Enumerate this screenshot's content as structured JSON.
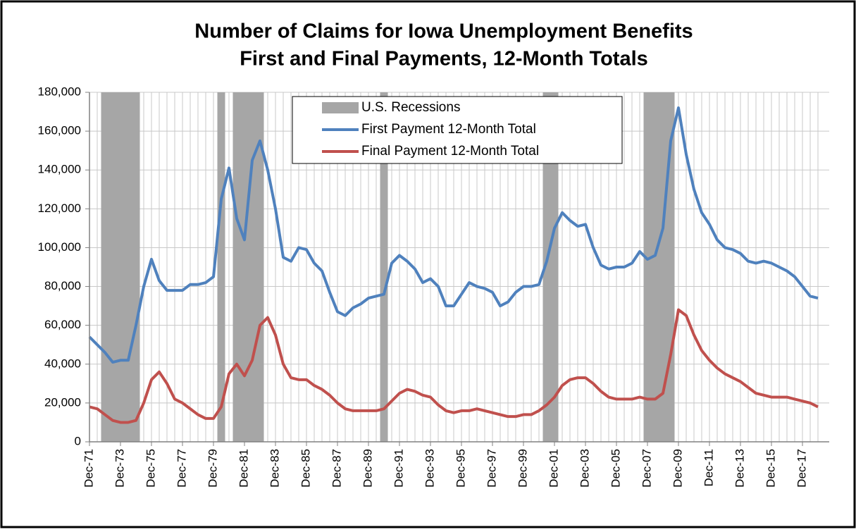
{
  "chart_data": {
    "type": "line",
    "title": "Number of Claims for Iowa Unemployment  Benefits",
    "subtitle": "First and Final Payments, 12-Month  Totals",
    "categories": [
      "Dec-71",
      null,
      null,
      null,
      "Dec-73",
      null,
      null,
      null,
      "Dec-75",
      null,
      null,
      null,
      "Dec-77",
      null,
      null,
      null,
      "Dec-79",
      null,
      null,
      null,
      "Dec-81",
      null,
      null,
      null,
      "Dec-83",
      null,
      null,
      null,
      "Dec-85",
      null,
      null,
      null,
      "Dec-87",
      null,
      null,
      null,
      "Dec-89",
      null,
      null,
      null,
      "Dec-91",
      null,
      null,
      null,
      "Dec-93",
      null,
      null,
      null,
      "Dec-95",
      null,
      null,
      null,
      "Dec-97",
      null,
      null,
      null,
      "Dec-99",
      null,
      null,
      null,
      "Dec-01",
      null,
      null,
      null,
      "Dec-03",
      null,
      null,
      null,
      "Dec-05",
      null,
      null,
      null,
      "Dec-07",
      null,
      null,
      null,
      "Dec-09",
      null,
      null,
      null,
      "Dec-11",
      null,
      null,
      null,
      "Dec-13",
      null,
      null,
      null,
      "Dec-15",
      null,
      null,
      null,
      "Dec-17",
      null,
      null
    ],
    "series": [
      {
        "name": "U.S. Recessions",
        "type": "bar",
        "color": "#a6a6a6",
        "values": [
          null,
          null,
          180000,
          180000,
          180000,
          180000,
          180000,
          null,
          null,
          null,
          null,
          null,
          null,
          null,
          null,
          null,
          null,
          180000,
          null,
          180000,
          180000,
          180000,
          180000,
          null,
          null,
          null,
          null,
          null,
          null,
          null,
          null,
          null,
          null,
          null,
          null,
          null,
          null,
          null,
          180000,
          null,
          null,
          null,
          null,
          null,
          null,
          null,
          null,
          null,
          null,
          null,
          null,
          null,
          null,
          null,
          null,
          null,
          null,
          null,
          null,
          180000,
          180000,
          null,
          null,
          null,
          null,
          null,
          null,
          null,
          null,
          null,
          null,
          null,
          180000,
          180000,
          180000,
          180000,
          null,
          null,
          null,
          null,
          null,
          null,
          null,
          null,
          null,
          null,
          null,
          null,
          null,
          null,
          null,
          null,
          null,
          null,
          null
        ]
      },
      {
        "name": "First Payment 12-Month Total",
        "type": "line",
        "color": "#4f81bd",
        "values": [
          54000,
          50000,
          46000,
          41000,
          42000,
          42000,
          60000,
          80000,
          94000,
          83000,
          78000,
          78000,
          78000,
          81000,
          81000,
          82000,
          85000,
          125000,
          141000,
          115000,
          104000,
          145000,
          155000,
          140000,
          120000,
          95000,
          93000,
          100000,
          99000,
          92000,
          88000,
          77000,
          67000,
          65000,
          69000,
          71000,
          74000,
          75000,
          76000,
          92000,
          96000,
          93000,
          89000,
          82000,
          84000,
          80000,
          70000,
          70000,
          76000,
          82000,
          80000,
          79000,
          77000,
          70000,
          72000,
          77000,
          80000,
          80000,
          81000,
          93000,
          110000,
          118000,
          114000,
          111000,
          112000,
          100000,
          91000,
          89000,
          90000,
          90000,
          92000,
          98000,
          94000,
          96000,
          110000,
          155000,
          172000,
          148000,
          130000,
          118000,
          112000,
          104000,
          100000,
          99000,
          97000,
          93000,
          92000,
          93000,
          92000,
          90000,
          88000,
          85000,
          80000,
          75000,
          74000
        ]
      },
      {
        "name": "Final Payment 12-Month Total",
        "type": "line",
        "color": "#c0504d",
        "values": [
          18000,
          17000,
          14000,
          11000,
          10000,
          10000,
          11000,
          20000,
          32000,
          36000,
          30000,
          22000,
          20000,
          17000,
          14000,
          12000,
          12000,
          18000,
          35000,
          40000,
          34000,
          42000,
          60000,
          64000,
          55000,
          40000,
          33000,
          32000,
          32000,
          29000,
          27000,
          24000,
          20000,
          17000,
          16000,
          16000,
          16000,
          16000,
          17000,
          21000,
          25000,
          27000,
          26000,
          24000,
          23000,
          19000,
          16000,
          15000,
          16000,
          16000,
          17000,
          16000,
          15000,
          14000,
          13000,
          13000,
          14000,
          14000,
          16000,
          19000,
          23000,
          29000,
          32000,
          33000,
          33000,
          30000,
          26000,
          23000,
          22000,
          22000,
          22000,
          23000,
          22000,
          22000,
          25000,
          45000,
          68000,
          65000,
          55000,
          47000,
          42000,
          38000,
          35000,
          33000,
          31000,
          28000,
          25000,
          24000,
          23000,
          23000,
          23000,
          22000,
          21000,
          20000,
          18000
        ]
      }
    ],
    "ylim": [
      0,
      180000
    ],
    "yticks": [
      0,
      {
        "value": 20000,
        "label": "20,000"
      },
      {
        "value": 40000,
        "label": "40,000"
      },
      {
        "value": 60000,
        "label": "60,000"
      },
      {
        "value": 80000,
        "label": "80,000"
      },
      {
        "value": 100000,
        "label": "100,000"
      },
      {
        "value": 120000,
        "label": "120,000"
      },
      {
        "value": 140000,
        "label": "140,000"
      },
      {
        "value": 160000,
        "label": "160,000"
      },
      {
        "value": 180000,
        "label": "180,000"
      }
    ],
    "grid": true,
    "legend": "top"
  }
}
